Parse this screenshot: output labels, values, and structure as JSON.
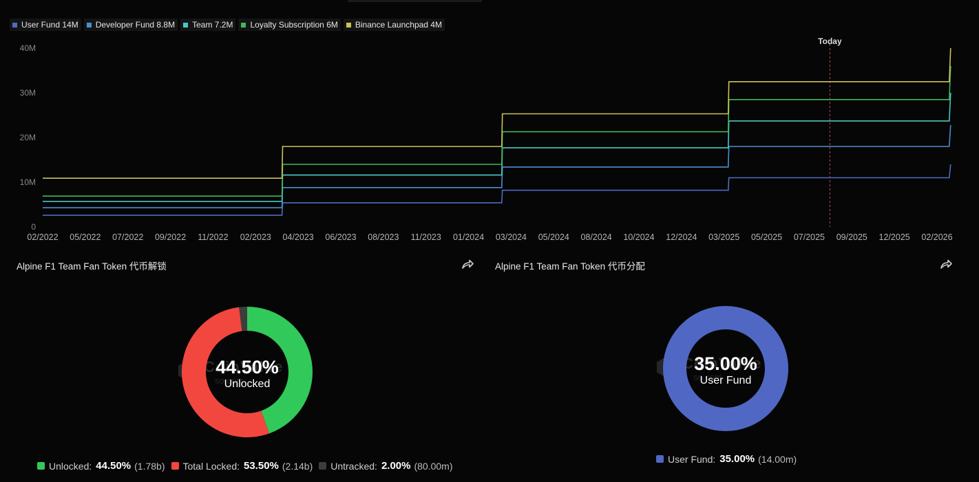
{
  "colors": {
    "user_fund": "#4f6cc4",
    "developer_fund": "#4b8fd0",
    "team": "#48c9c6",
    "loyalty": "#43b85a",
    "binance": "#c9c45a",
    "unlocked": "#31c95a",
    "locked": "#f2473f",
    "untracked": "#3d3d3d",
    "today_line": "#c34a4a"
  },
  "legend": [
    {
      "label": "User Fund 14M",
      "color": "#4f6cc4"
    },
    {
      "label": "Developer Fund 8.8M",
      "color": "#4b8fd0"
    },
    {
      "label": "Team 7.2M",
      "color": "#48c9c6"
    },
    {
      "label": "Loyalty Subscription 6M",
      "color": "#43b85a"
    },
    {
      "label": "Binance Launchpad 4M",
      "color": "#c9c45a"
    }
  ],
  "chart_data": [
    {
      "type": "area",
      "stacked": true,
      "x_ticks": [
        "02/2022",
        "05/2022",
        "07/2022",
        "09/2022",
        "11/2022",
        "02/2023",
        "04/2023",
        "06/2023",
        "08/2023",
        "11/2023",
        "01/2024",
        "03/2024",
        "05/2024",
        "08/2024",
        "10/2024",
        "12/2024",
        "03/2025",
        "05/2025",
        "07/2025",
        "09/2025",
        "12/2025",
        "02/2026"
      ],
      "y_ticks": [
        "0",
        "10M",
        "20M",
        "30M",
        "40M"
      ],
      "ylim": [
        0,
        40
      ],
      "today_label": "Today",
      "today_x": "2025-08-10",
      "x": [
        "2022-02-01",
        "2023-02-27",
        "2023-02-28",
        "2024-02-21",
        "2024-02-22",
        "2025-02-25",
        "2025-02-26",
        "2026-02-21",
        "2026-02-22"
      ],
      "series": [
        {
          "name": "User Fund 14M",
          "color": "#4f6cc4",
          "values": [
            2.6,
            2.6,
            5.4,
            5.4,
            8.2,
            8.2,
            11.0,
            11.0,
            14.0
          ]
        },
        {
          "name": "Developer Fund 8.8M",
          "color": "#4b8fd0",
          "values": [
            1.7,
            1.7,
            3.4,
            3.4,
            5.2,
            5.2,
            7.0,
            7.0,
            8.8
          ]
        },
        {
          "name": "Team 7.2M",
          "color": "#48c9c6",
          "values": [
            1.4,
            1.4,
            2.8,
            2.8,
            4.3,
            4.3,
            5.7,
            5.7,
            7.2
          ]
        },
        {
          "name": "Loyalty Subscription 6M",
          "color": "#43b85a",
          "values": [
            1.2,
            1.2,
            2.4,
            2.4,
            3.6,
            3.6,
            4.8,
            4.8,
            6.0
          ]
        },
        {
          "name": "Binance Launchpad 4M",
          "color": "#c9c45a",
          "values": [
            4.0,
            4.0,
            4.0,
            4.0,
            4.0,
            4.0,
            4.0,
            4.0,
            4.0
          ]
        }
      ]
    },
    {
      "type": "pie",
      "title": "Alpine F1 Team Fan Token 代币解锁",
      "center_value": "44.50%",
      "center_label": "Unlocked",
      "slices": [
        {
          "name": "Unlocked",
          "value": 44.5,
          "pct": "44.50%",
          "amount": "(1.78b)",
          "color": "#31c95a"
        },
        {
          "name": "Total Locked",
          "value": 53.5,
          "pct": "53.50%",
          "amount": "(2.14b)",
          "color": "#f2473f"
        },
        {
          "name": "Untracked",
          "value": 2.0,
          "pct": "2.00%",
          "amount": "(80.00m)",
          "color": "#3d3d3d"
        }
      ]
    },
    {
      "type": "pie",
      "title": "Alpine F1 Team Fan Token 代币分配",
      "center_value": "35.00%",
      "center_label": "User Fund",
      "slices": [
        {
          "name": "User Fund",
          "value": 100,
          "pct": "35.00%",
          "amount": "(14.00m)",
          "color": "#5068c4"
        }
      ]
    }
  ],
  "watermark": {
    "brand": "CoinValue",
    "brand_sub": "so.com"
  }
}
